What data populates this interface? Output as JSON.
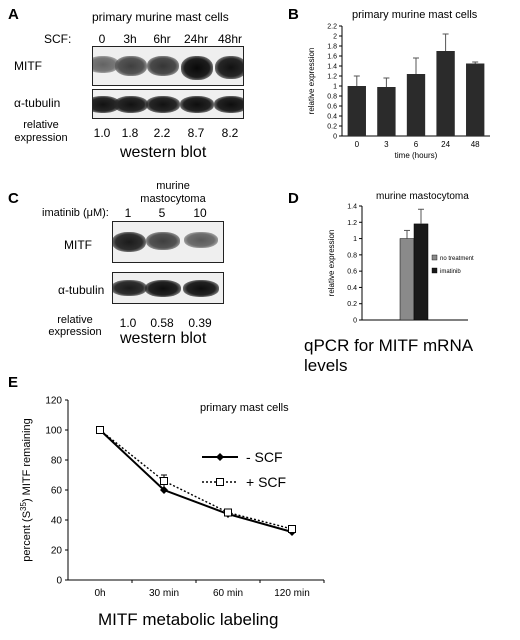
{
  "panelA": {
    "letter": "A",
    "title": "primary murine mast cells",
    "scf_label": "SCF:",
    "lanes": [
      "0",
      "3h",
      "6hr",
      "24hr",
      "48hr"
    ],
    "row1_label": "MITF",
    "row2_label": "α-tubulin",
    "rel_label_line1": "relative",
    "rel_label_line2": "expression",
    "rel_values": [
      "1.0",
      "1.8",
      "2.2",
      "8.7",
      "8.2"
    ],
    "caption": "western blot",
    "mitf_band_intensity": [
      0.45,
      0.65,
      0.7,
      0.95,
      0.9
    ]
  },
  "panelB": {
    "letter": "B",
    "title": "primary murine mast cells"
  },
  "panelC": {
    "letter": "C",
    "cell_line_line1": "murine",
    "cell_line_line2": "mastocytoma",
    "imatinib_label": "imatinib (μM):",
    "lanes": [
      "1",
      "5",
      "10"
    ],
    "row1_label": "MITF",
    "row2_label": "α-tubulin",
    "rel_label_line1": "relative",
    "rel_label_line2": "expression",
    "rel_values": [
      "1.0",
      "0.58",
      "0.39"
    ],
    "caption": "western blot",
    "mitf_band_intensity": [
      0.85,
      0.65,
      0.5
    ]
  },
  "panelD": {
    "letter": "D",
    "title": "murine mastocytoma",
    "caption": "qPCR for MITF mRNA levels"
  },
  "panelE": {
    "letter": "E",
    "title": "primary mast cells",
    "caption": "MITF metabolic labeling"
  },
  "chart_data": [
    {
      "id": "B",
      "type": "bar",
      "title": "primary murine mast cells",
      "xlabel": "time (hours)",
      "ylabel": "relative expression",
      "categories": [
        "0",
        "3",
        "6",
        "24",
        "48"
      ],
      "values": [
        1.0,
        0.98,
        1.24,
        1.7,
        1.45
      ],
      "errors": [
        0.2,
        0.18,
        0.32,
        0.34,
        0.03
      ],
      "ylim": [
        0,
        2.2
      ],
      "yticks": [
        "0",
        "0.2",
        "0.4",
        "0.6",
        "0.8",
        "1",
        "1.2",
        "1.4",
        "1.6",
        "1.8",
        "2",
        "2.2"
      ],
      "bar_color": "#2b2b2b"
    },
    {
      "id": "D",
      "type": "bar",
      "title": "murine mastocytoma",
      "ylabel": "relative expression",
      "series": [
        {
          "name": "no treatment",
          "value": 1.0,
          "error": 0.1,
          "color": "#8a8a8a"
        },
        {
          "name": "imatinib",
          "value": 1.18,
          "error": 0.18,
          "color": "#1a1a1a"
        }
      ],
      "ylim": [
        0,
        1.4
      ],
      "yticks": [
        "0",
        "0.2",
        "0.4",
        "0.6",
        "0.8",
        "1",
        "1.2",
        "1.4"
      ]
    },
    {
      "id": "E",
      "type": "line",
      "title": "primary mast cells",
      "xlabel": "MITF metabolic labeling",
      "ylabel": "percent (S35) MITF remaining",
      "categories": [
        "0h",
        "30 min",
        "60 min",
        "120 min"
      ],
      "ylim": [
        0,
        120
      ],
      "yticks": [
        "0",
        "20",
        "40",
        "60",
        "80",
        "100",
        "120"
      ],
      "series": [
        {
          "name": "- SCF",
          "values": [
            100,
            60,
            44,
            32
          ],
          "style": "solid",
          "marker": "filled-diamond"
        },
        {
          "name": "+ SCF",
          "values": [
            100,
            66,
            45,
            34
          ],
          "errors": [
            0,
            4,
            1,
            1
          ],
          "style": "dotted",
          "marker": "open-square"
        }
      ]
    }
  ]
}
